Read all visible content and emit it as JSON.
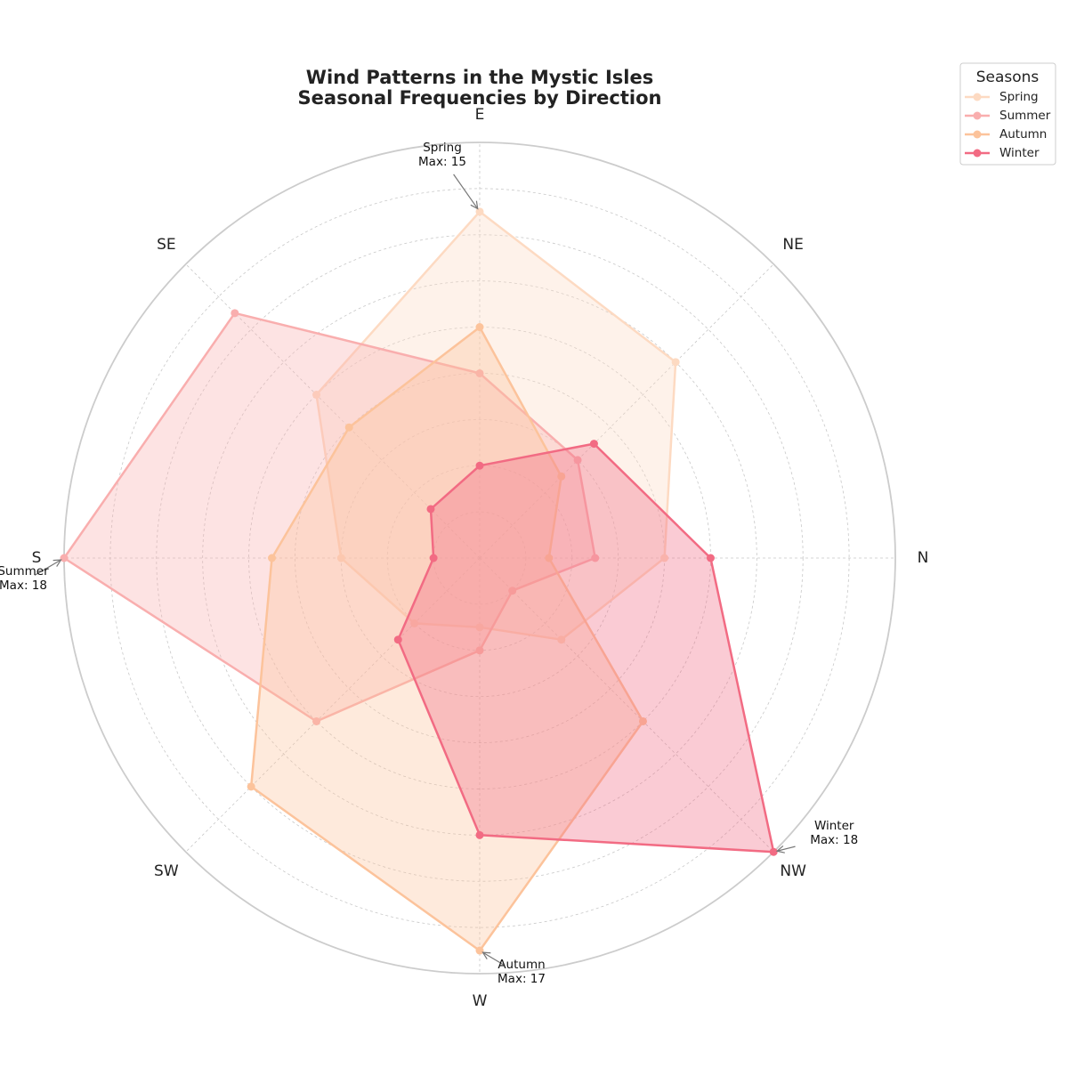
{
  "chart_data": {
    "type": "radar",
    "title": "Wind Patterns in the Mystic Isles",
    "subtitle": "Seasonal Frequencies by Direction",
    "directions": [
      "N",
      "NE",
      "E",
      "SE",
      "S",
      "SW",
      "W",
      "NW"
    ],
    "rmax": 18,
    "series": [
      {
        "name": "Spring",
        "color": "#FDDAC2",
        "values": [
          8,
          12,
          15,
          10,
          6,
          4,
          3,
          5
        ]
      },
      {
        "name": "Summer",
        "color": "#F9AEAE",
        "values": [
          5,
          6,
          8,
          15,
          18,
          10,
          4,
          2
        ]
      },
      {
        "name": "Autumn",
        "color": "#FCC39B",
        "values": [
          3,
          5,
          10,
          8,
          9,
          14,
          17,
          10
        ]
      },
      {
        "name": "Winter",
        "color": "#F26B83",
        "values": [
          10,
          7,
          4,
          3,
          2,
          5,
          12,
          18
        ]
      }
    ],
    "annotations": [
      {
        "series": "Spring",
        "line1": "Spring",
        "line2": "Max: 15",
        "direction": "E"
      },
      {
        "series": "Summer",
        "line1": "Summer",
        "line2": "Max: 18",
        "direction": "S"
      },
      {
        "series": "Autumn",
        "line1": "Autumn",
        "line2": "Max: 17",
        "direction": "W"
      },
      {
        "series": "Winter",
        "line1": "Winter",
        "line2": "Max: 18",
        "direction": "NW"
      }
    ],
    "legend": {
      "title": "Seasons",
      "position": "upper-right, outside"
    },
    "grid": true,
    "radial_tick_labels": false
  }
}
